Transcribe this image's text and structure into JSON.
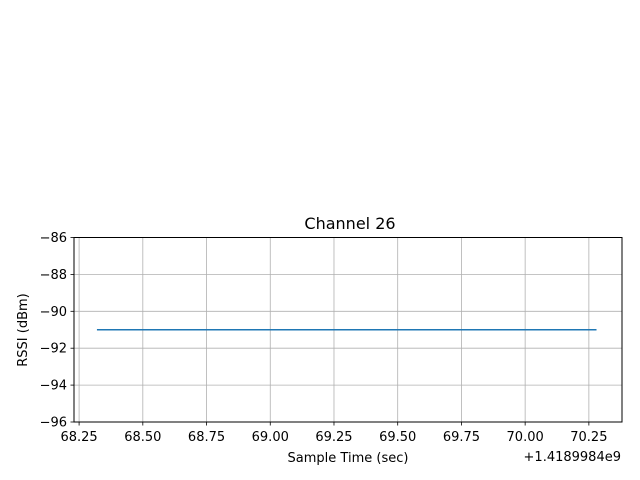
{
  "chart_data": {
    "type": "line",
    "title": "Channel 26",
    "xlabel": "Sample Time (sec)",
    "ylabel": "RSSI (dBm)",
    "x_offset_label": "+1.4189984e9",
    "xlim": [
      68.23,
      70.38
    ],
    "ylim": [
      -96,
      -86
    ],
    "x_ticks": [
      68.25,
      68.5,
      68.75,
      69.0,
      69.25,
      69.5,
      69.75,
      70.0,
      70.25
    ],
    "x_tick_labels": [
      "68.25",
      "68.50",
      "68.75",
      "69.00",
      "69.25",
      "69.50",
      "69.75",
      "70.00",
      "70.25"
    ],
    "y_ticks": [
      -96,
      -94,
      -92,
      -90,
      -88,
      -86
    ],
    "y_tick_labels": [
      "−96",
      "−94",
      "−92",
      "−90",
      "−88",
      "−86"
    ],
    "grid": true,
    "series": [
      {
        "color": "#1f77b4",
        "x": [
          68.32,
          70.28
        ],
        "y": [
          -91,
          -91
        ]
      }
    ]
  }
}
